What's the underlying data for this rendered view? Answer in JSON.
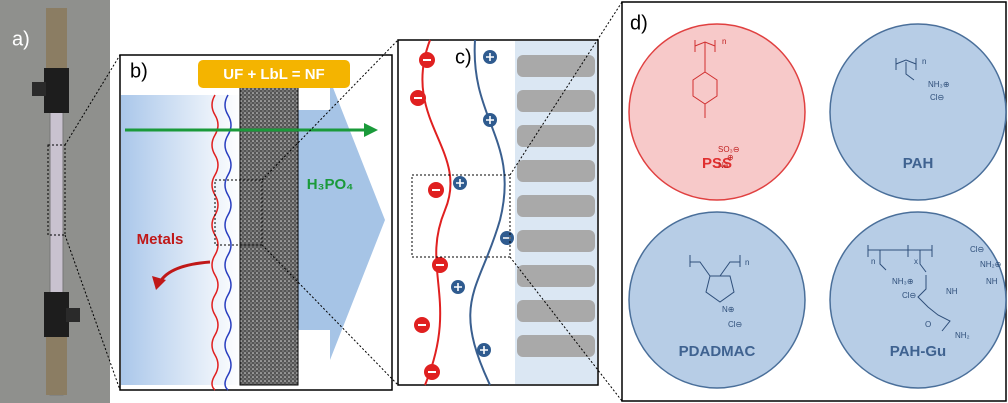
{
  "panels": {
    "a": {
      "label": "a)"
    },
    "b": {
      "label": "b)",
      "equation": "UF + LbL = NF",
      "permeate": "H₃PO₄",
      "rejected": "Metals"
    },
    "c": {
      "label": "c)"
    },
    "d": {
      "label": "d)",
      "polymers": [
        {
          "name": "PSS",
          "labels": [
            "n",
            "SO₃⊖",
            "⊕",
            "Na"
          ]
        },
        {
          "name": "PAH",
          "labels": [
            "n",
            "NH₃⊕",
            "Cl⊖"
          ]
        },
        {
          "name": "PDADMAC",
          "labels": [
            "n",
            "N⊕",
            "Cl⊖"
          ]
        },
        {
          "name": "PAH-Gu",
          "labels": [
            "n",
            "x",
            "NH₃⊕",
            "Cl⊖",
            "NH",
            "O",
            "Cl⊖",
            "NH₂⊕",
            "NH",
            "NH₂"
          ]
        }
      ]
    }
  }
}
